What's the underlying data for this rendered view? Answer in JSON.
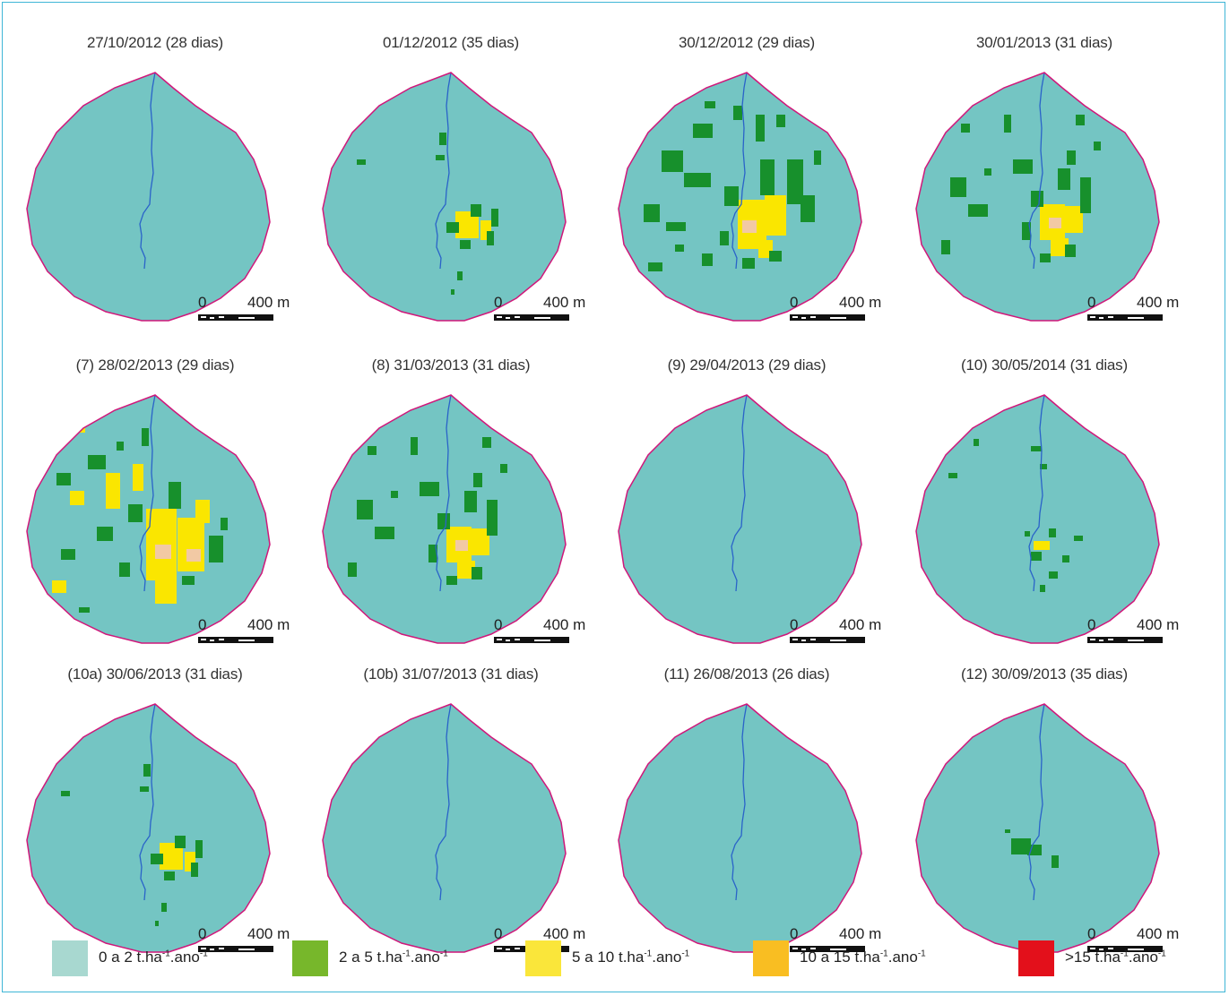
{
  "colors": {
    "background_class": "#74c5c3",
    "boundary": "#d0177a",
    "stream": "#2a63c9",
    "class_2_5": "#17902c",
    "class_5_10": "#fae600",
    "pale_patch": "#f2c9a4",
    "frame": "#3fb6d6"
  },
  "scale_bar": {
    "zero": "0",
    "distance": "400 m"
  },
  "maps": [
    {
      "title": "27/10/2012 (28 dias)",
      "pattern": "none"
    },
    {
      "title": "01/12/2012 (35 dias)",
      "pattern": "low"
    },
    {
      "title": "30/12/2012 (29 dias)",
      "pattern": "high"
    },
    {
      "title": "30/01/2013 (31 dias)",
      "pattern": "medium"
    },
    {
      "title": "(7) 28/02/2013 (29 dias)",
      "pattern": "very_high"
    },
    {
      "title": "(8) 31/03/2013 (31 dias)",
      "pattern": "medium"
    },
    {
      "title": "(9) 29/04/2013 (29 dias)",
      "pattern": "none"
    },
    {
      "title": "(10) 30/05/2014 (31 dias)",
      "pattern": "low_small"
    },
    {
      "title": "(10a) 30/06/2013 (31 dias)",
      "pattern": "low"
    },
    {
      "title": "(10b) 31/07/2013 (31 dias)",
      "pattern": "none"
    },
    {
      "title": "(11) 26/08/2013 (26 dias)",
      "pattern": "none"
    },
    {
      "title": "(12) 30/09/2013 (35 dias)",
      "pattern": "tiny"
    }
  ],
  "legend": [
    {
      "label": "0 a 2 t.ha",
      "sup1": "-1",
      "mid": ".ano",
      "sup2": "-1",
      "color": "#a8d8d0"
    },
    {
      "label": "2 a 5 t.ha",
      "sup1": "-1",
      "mid": ".ano",
      "sup2": "-1",
      "color": "#77b72b"
    },
    {
      "label": "5 a 10 t.ha",
      "sup1": "-1",
      "mid": ".ano",
      "sup2": "-1",
      "color": "#fae63a"
    },
    {
      "label": "10 a 15 t.ha",
      "sup1": "-1",
      "mid": ".ano",
      "sup2": "-1",
      "color": "#f9be22"
    },
    {
      "label": ">15 t.ha",
      "sup1": "-1",
      "mid": ".ano",
      "sup2": "-1",
      "color": "#e3101b"
    }
  ]
}
